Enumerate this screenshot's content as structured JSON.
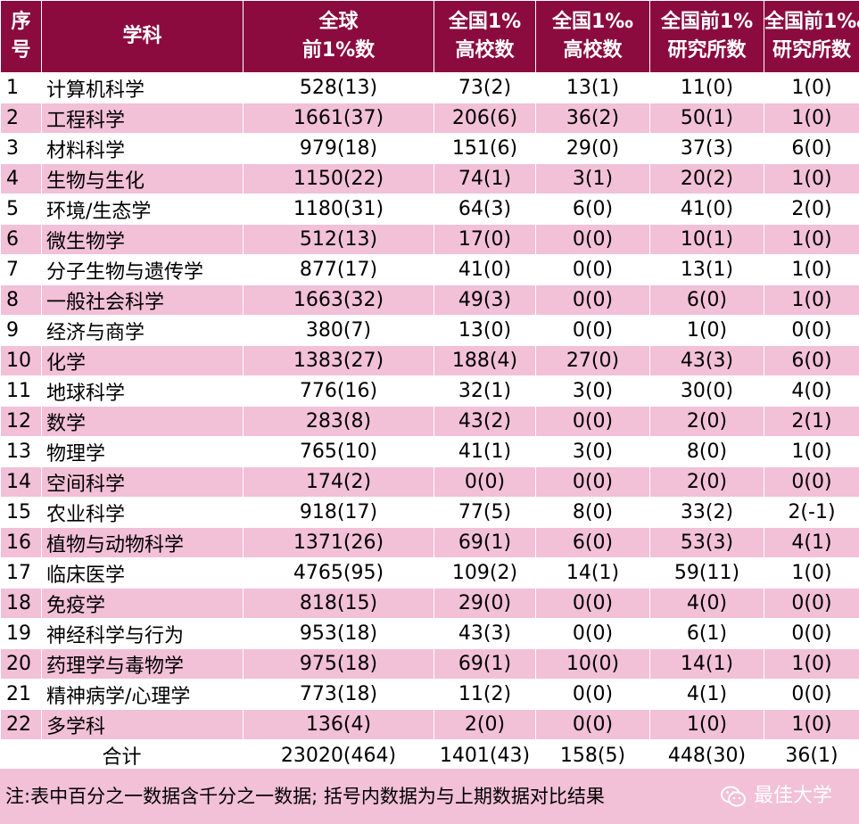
{
  "headers": {
    "seq": [
      "序",
      "号"
    ],
    "subject": "学科",
    "global": [
      "全球",
      "前1%数"
    ],
    "nat_univ_1p": [
      "全国1%",
      "高校数"
    ],
    "nat_univ_1pm": [
      "全国1‰",
      "高校数"
    ],
    "nat_inst_1p": [
      "全国前1%",
      "研究所数"
    ],
    "nat_inst_1pm": [
      "全国前1‰",
      "研究所数"
    ]
  },
  "rows": [
    {
      "seq": "1",
      "subject": "计算机科学",
      "global": "528(13)",
      "u1": "73(2)",
      "u2": "13(1)",
      "i1": "11(0)",
      "i2": "1(0)"
    },
    {
      "seq": "2",
      "subject": "工程科学",
      "global": "1661(37)",
      "u1": "206(6)",
      "u2": "36(2)",
      "i1": "50(1)",
      "i2": "1(0)"
    },
    {
      "seq": "3",
      "subject": "材料科学",
      "global": "979(18)",
      "u1": "151(6)",
      "u2": "29(0)",
      "i1": "37(3)",
      "i2": "6(0)"
    },
    {
      "seq": "4",
      "subject": "生物与生化",
      "global": "1150(22)",
      "u1": "74(1)",
      "u2": "3(1)",
      "i1": "20(2)",
      "i2": "1(0)"
    },
    {
      "seq": "5",
      "subject": "环境/生态学",
      "global": "1180(31)",
      "u1": "64(3)",
      "u2": "6(0)",
      "i1": "41(0)",
      "i2": "2(0)"
    },
    {
      "seq": "6",
      "subject": "微生物学",
      "global": "512(13)",
      "u1": "17(0)",
      "u2": "0(0)",
      "i1": "10(1)",
      "i2": "1(0)"
    },
    {
      "seq": "7",
      "subject": "分子生物与遗传学",
      "global": "877(17)",
      "u1": "41(0)",
      "u2": "0(0)",
      "i1": "13(1)",
      "i2": "1(0)"
    },
    {
      "seq": "8",
      "subject": "一般社会科学",
      "global": "1663(32)",
      "u1": "49(3)",
      "u2": "0(0)",
      "i1": "6(0)",
      "i2": "1(0)"
    },
    {
      "seq": "9",
      "subject": "经济与商学",
      "global": "380(7)",
      "u1": "13(0)",
      "u2": "0(0)",
      "i1": "1(0)",
      "i2": "0(0)"
    },
    {
      "seq": "10",
      "subject": "化学",
      "global": "1383(27)",
      "u1": "188(4)",
      "u2": "27(0)",
      "i1": "43(3)",
      "i2": "6(0)"
    },
    {
      "seq": "11",
      "subject": "地球科学",
      "global": "776(16)",
      "u1": "32(1)",
      "u2": "3(0)",
      "i1": "30(0)",
      "i2": "4(0)"
    },
    {
      "seq": "12",
      "subject": "数学",
      "global": "283(8)",
      "u1": "43(2)",
      "u2": "0(0)",
      "i1": "2(0)",
      "i2": "2(1)"
    },
    {
      "seq": "13",
      "subject": "物理学",
      "global": "765(10)",
      "u1": "41(1)",
      "u2": "3(0)",
      "i1": "8(0)",
      "i2": "1(0)"
    },
    {
      "seq": "14",
      "subject": "空间科学",
      "global": "174(2)",
      "u1": "0(0)",
      "u2": "0(0)",
      "i1": "2(0)",
      "i2": "0(0)"
    },
    {
      "seq": "15",
      "subject": "农业科学",
      "global": "918(17)",
      "u1": "77(5)",
      "u2": "8(0)",
      "i1": "33(2)",
      "i2": "2(-1)"
    },
    {
      "seq": "16",
      "subject": "植物与动物科学",
      "global": "1371(26)",
      "u1": "69(1)",
      "u2": "6(0)",
      "i1": "53(3)",
      "i2": "4(1)"
    },
    {
      "seq": "17",
      "subject": "临床医学",
      "global": "4765(95)",
      "u1": "109(2)",
      "u2": "14(1)",
      "i1": "59(11)",
      "i2": "1(0)"
    },
    {
      "seq": "18",
      "subject": "免疫学",
      "global": "818(15)",
      "u1": "29(0)",
      "u2": "0(0)",
      "i1": "4(0)",
      "i2": "0(0)"
    },
    {
      "seq": "19",
      "subject": "神经科学与行为",
      "global": "953(18)",
      "u1": "43(3)",
      "u2": "0(0)",
      "i1": "6(1)",
      "i2": "0(0)"
    },
    {
      "seq": "20",
      "subject": "药理学与毒物学",
      "global": "975(18)",
      "u1": "69(1)",
      "u2": "10(0)",
      "i1": "14(1)",
      "i2": "1(0)"
    },
    {
      "seq": "21",
      "subject": "精神病学/心理学",
      "global": "773(18)",
      "u1": "11(2)",
      "u2": "0(0)",
      "i1": "4(1)",
      "i2": "0(0)"
    },
    {
      "seq": "22",
      "subject": "多学科",
      "global": "136(4)",
      "u1": "2(0)",
      "u2": "0(0)",
      "i1": "1(0)",
      "i2": "1(0)"
    }
  ],
  "total": {
    "label": "合计",
    "global": "23020(464)",
    "u1": "1401(43)",
    "u2": "158(5)",
    "i1": "448(30)",
    "i2": "36(1)"
  },
  "note": "注:表中百分之一数据含千分之一数据; 括号内数据为与上期数据对比结果",
  "watermark": "最佳大学",
  "colors": {
    "header": "#8b0b3f",
    "stripe": "#f2c0d7"
  }
}
